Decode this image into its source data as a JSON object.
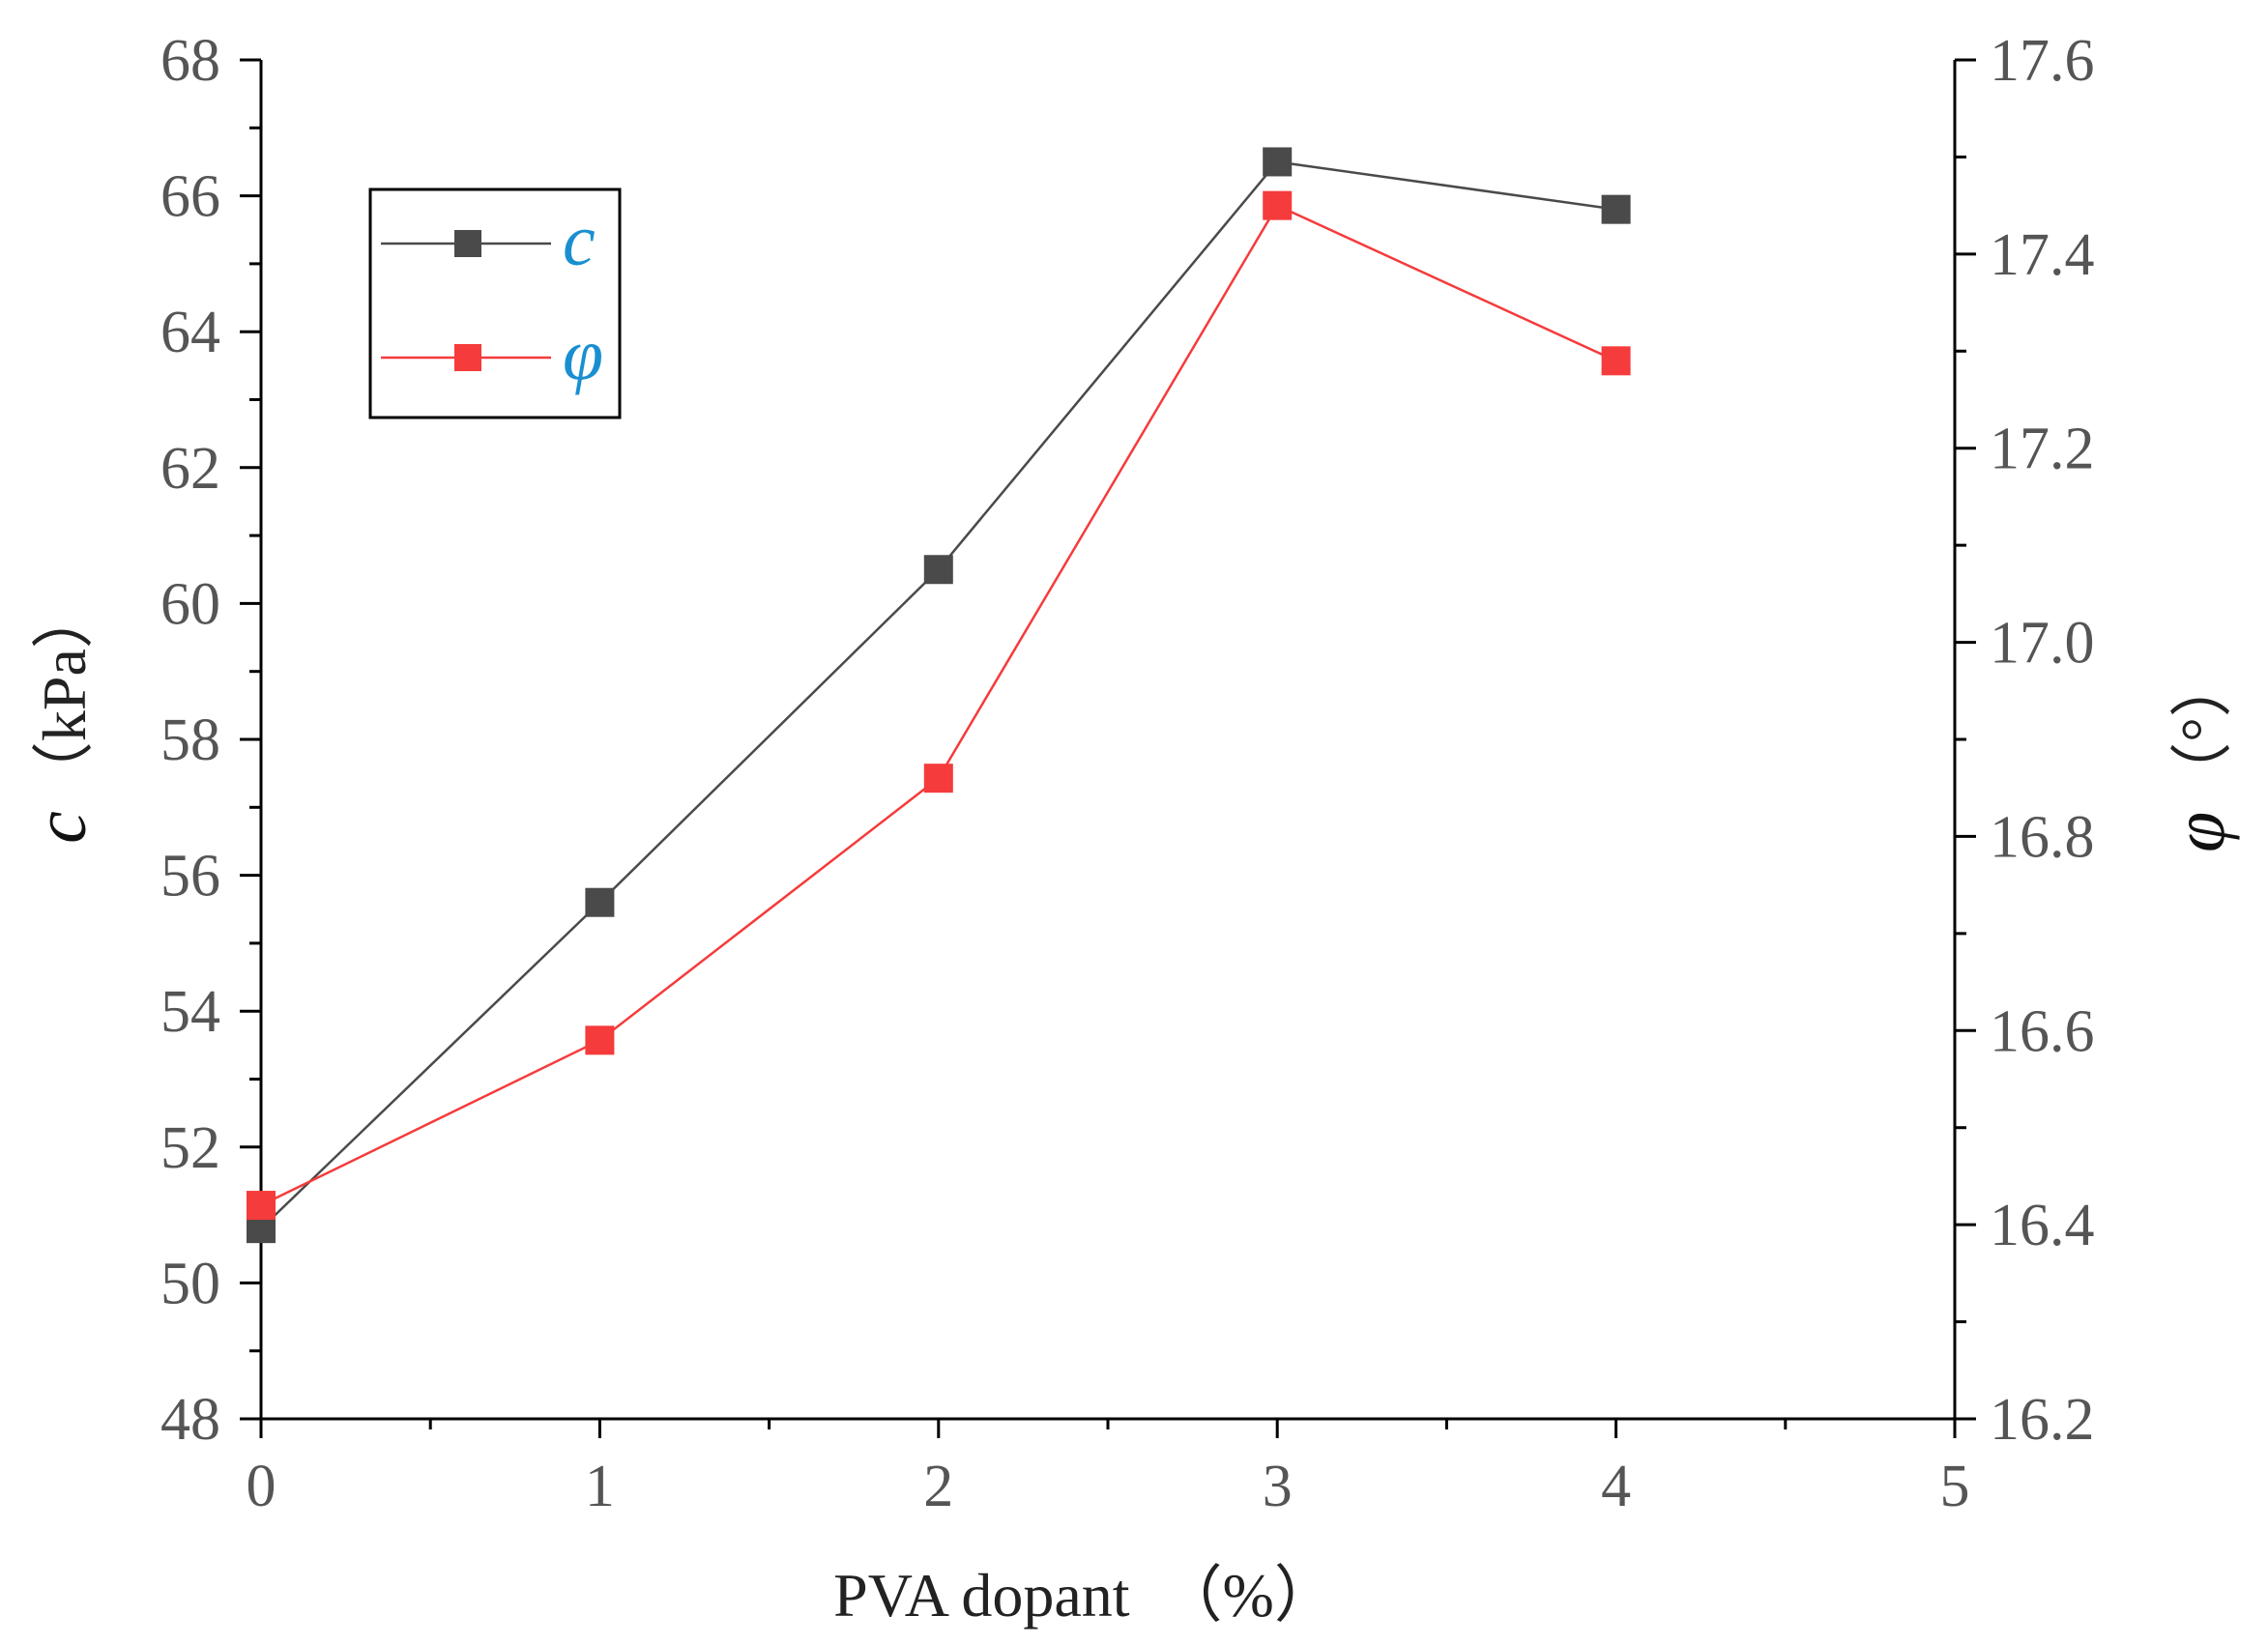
{
  "chart_data": {
    "type": "line",
    "x": [
      0,
      1,
      2,
      3,
      4
    ],
    "xlim": [
      0,
      5
    ],
    "xticks": [
      "0",
      "1",
      "2",
      "3",
      "4",
      "5"
    ],
    "xlabel": "PVA dopant　（%）",
    "y_left": {
      "label_symbol": "c",
      "label_unit": "（kPa）",
      "lim": [
        48,
        68
      ],
      "ticks": [
        "48",
        "50",
        "52",
        "54",
        "56",
        "58",
        "60",
        "62",
        "64",
        "66",
        "68"
      ]
    },
    "y_right": {
      "label_symbol": "φ",
      "label_unit": "（°）",
      "lim": [
        16.2,
        17.6
      ],
      "ticks": [
        "16.2",
        "16.4",
        "16.6",
        "16.8",
        "17.0",
        "17.2",
        "17.4",
        "17.6"
      ]
    },
    "series": [
      {
        "name": "c",
        "axis": "left",
        "color": "#4a4a4a",
        "values": [
          50.8,
          55.6,
          60.5,
          66.5,
          65.8
        ]
      },
      {
        "name": "φ",
        "axis": "right",
        "color": "#f53b3b",
        "values": [
          16.42,
          16.59,
          16.86,
          17.45,
          17.29
        ]
      }
    ],
    "legend": {
      "position": "top-left",
      "entries": [
        "c",
        "φ"
      ]
    }
  }
}
